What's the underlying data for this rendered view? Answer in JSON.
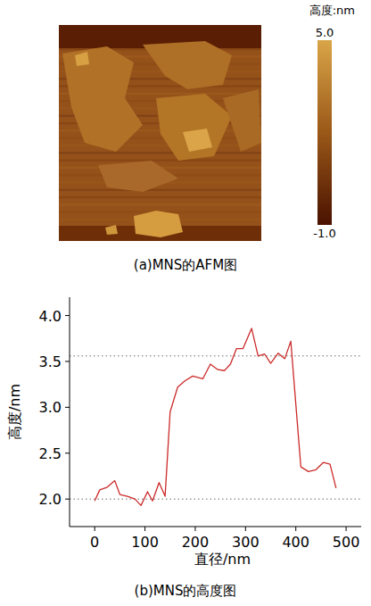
{
  "chart_data": [
    {
      "type": "image",
      "caption": "(a)MNS的AFM图",
      "colorbar": {
        "label": "高度:nm",
        "range": [
          -1.0,
          5.0
        ],
        "ticks": [
          {
            "value": 5.0,
            "label": "5.0"
          },
          {
            "value": -1.0,
            "label": "-1.0"
          }
        ]
      }
    },
    {
      "type": "line",
      "caption": "(b)MNS的高度图",
      "x_label": "直径/nm",
      "y_label": "高度/nm",
      "color": "#cc2a2a",
      "x": [
        0,
        10,
        25,
        40,
        50,
        65,
        80,
        92,
        105,
        115,
        128,
        140,
        150,
        165,
        180,
        195,
        215,
        230,
        245,
        258,
        270,
        282,
        295,
        312,
        325,
        338,
        350,
        365,
        378,
        390,
        410,
        425,
        440,
        455,
        468,
        480
      ],
      "values": [
        1.98,
        2.1,
        2.13,
        2.2,
        2.05,
        2.03,
        2.0,
        1.93,
        2.08,
        1.98,
        2.18,
        2.03,
        2.95,
        3.22,
        3.29,
        3.34,
        3.31,
        3.47,
        3.41,
        3.4,
        3.47,
        3.64,
        3.64,
        3.86,
        3.56,
        3.58,
        3.48,
        3.59,
        3.53,
        3.72,
        2.35,
        2.3,
        2.32,
        2.4,
        2.38,
        2.12
      ],
      "xlim": [
        -50,
        530
      ],
      "xticks": [
        0,
        100,
        200,
        300,
        400,
        500
      ],
      "ylim": [
        1.7,
        4.2
      ],
      "yticks": [
        {
          "value": 2.0,
          "label": "2.0"
        },
        {
          "value": 2.5,
          "label": "2.5"
        },
        {
          "value": 3.0,
          "label": "3.0"
        },
        {
          "value": 3.5,
          "label": "3.5"
        },
        {
          "value": 4.0,
          "label": "4.0"
        }
      ],
      "reference_lines": [
        2.0,
        3.56
      ],
      "grid": false
    }
  ]
}
